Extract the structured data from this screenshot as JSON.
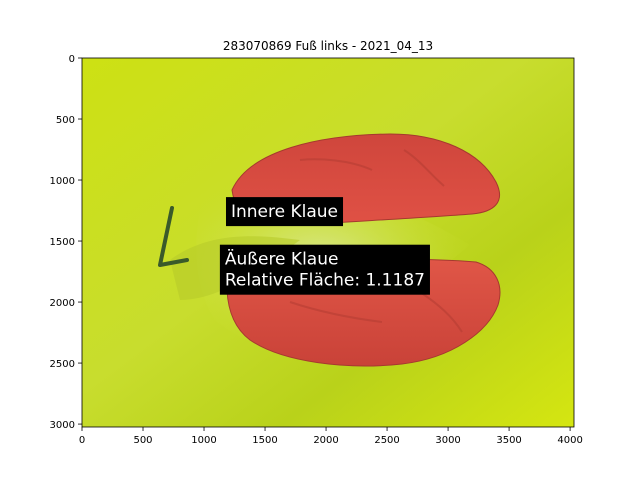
{
  "chart_data": {
    "type": "image",
    "title": "283070869 Fuß links - 2021_04_13",
    "xlim": [
      0,
      4032
    ],
    "ylim": [
      3024,
      0
    ],
    "xticks": [
      0,
      500,
      1000,
      1500,
      2000,
      2500,
      3000,
      3500,
      4000
    ],
    "yticks": [
      0,
      500,
      1000,
      1500,
      2000,
      2500,
      3000
    ],
    "grid": false,
    "colors": {
      "background_green": "#cfe30f",
      "segment_red": "#d84b3f",
      "label_box": "#000000",
      "label_text": "#ffffff"
    },
    "annotations": [
      {
        "name": "inner-claw",
        "lines": [
          "Innere Klaue"
        ],
        "x": 1180,
        "y": 1140
      },
      {
        "name": "outer-claw",
        "lines": [
          "Äußere Klaue",
          "Relative Fläche: 1.1187"
        ],
        "x": 1130,
        "y": 1530
      }
    ]
  }
}
